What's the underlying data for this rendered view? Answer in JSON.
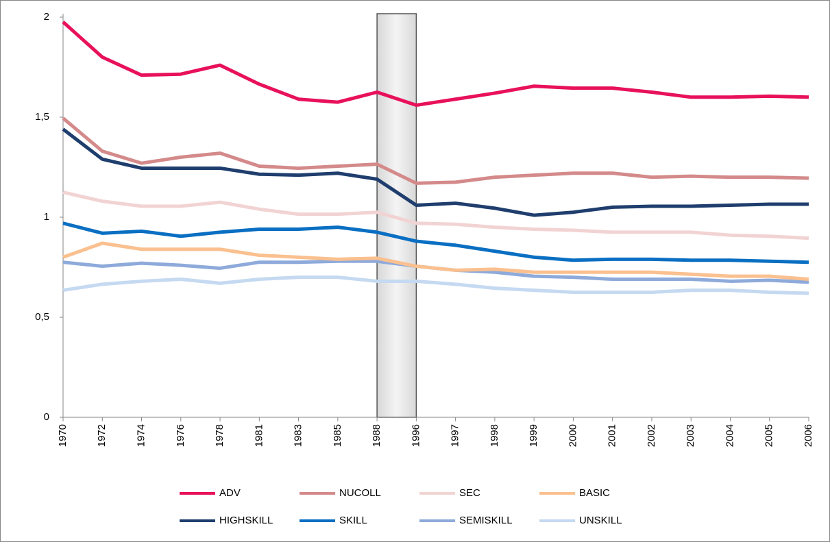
{
  "chart_data": {
    "type": "line",
    "categories": [
      "1970",
      "1972",
      "1974",
      "1976",
      "1978",
      "1981",
      "1983",
      "1985",
      "1988",
      "1996",
      "1997",
      "1998",
      "1999",
      "2000",
      "2001",
      "2002",
      "2003",
      "2004",
      "2005",
      "2006"
    ],
    "ylim": [
      0,
      2
    ],
    "yticks": [
      0,
      {
        "value": 0.5,
        "label": "0,5"
      },
      1,
      {
        "value": 1.5,
        "label": "1,5"
      },
      2
    ],
    "grid": false,
    "series": [
      {
        "name": "ADV",
        "color": "#e8115b",
        "values": [
          1.976,
          1.8,
          1.71,
          1.715,
          1.76,
          1.665,
          1.59,
          1.575,
          1.625,
          1.56,
          1.59,
          1.62,
          1.655,
          1.645,
          1.645,
          1.625,
          1.6,
          1.6,
          1.605,
          1.6
        ]
      },
      {
        "name": "NUCOLL",
        "color": "#d48a8a",
        "values": [
          1.495,
          1.33,
          1.27,
          1.3,
          1.32,
          1.255,
          1.245,
          1.255,
          1.265,
          1.17,
          1.175,
          1.2,
          1.21,
          1.22,
          1.22,
          1.2,
          1.205,
          1.2,
          1.2,
          1.195
        ]
      },
      {
        "name": "SEC",
        "color": "#f2d3d3",
        "values": [
          1.125,
          1.08,
          1.055,
          1.055,
          1.075,
          1.04,
          1.015,
          1.015,
          1.025,
          0.97,
          0.965,
          0.95,
          0.94,
          0.935,
          0.925,
          0.925,
          0.925,
          0.91,
          0.905,
          0.895
        ]
      },
      {
        "name": "BASIC",
        "color": "#fac08f",
        "values": [
          0.8,
          0.87,
          0.84,
          0.84,
          0.84,
          0.81,
          0.8,
          0.79,
          0.795,
          0.755,
          0.735,
          0.74,
          0.725,
          0.725,
          0.725,
          0.725,
          0.715,
          0.705,
          0.705,
          0.69
        ]
      },
      {
        "name": "HIGHSKILL",
        "color": "#1f3e6e",
        "values": [
          1.44,
          1.29,
          1.245,
          1.245,
          1.245,
          1.215,
          1.21,
          1.22,
          1.19,
          1.06,
          1.07,
          1.045,
          1.01,
          1.025,
          1.05,
          1.055,
          1.055,
          1.06,
          1.065,
          1.065
        ]
      },
      {
        "name": "SKILL",
        "color": "#0a6fc2",
        "values": [
          0.97,
          0.92,
          0.93,
          0.905,
          0.925,
          0.94,
          0.94,
          0.95,
          0.925,
          0.88,
          0.86,
          0.83,
          0.8,
          0.785,
          0.79,
          0.79,
          0.785,
          0.785,
          0.78,
          0.775
        ]
      },
      {
        "name": "SEMISKILL",
        "color": "#8eaadb",
        "values": [
          0.775,
          0.755,
          0.77,
          0.76,
          0.745,
          0.775,
          0.775,
          0.78,
          0.78,
          0.755,
          0.735,
          0.725,
          0.705,
          0.7,
          0.69,
          0.69,
          0.69,
          0.68,
          0.685,
          0.675
        ]
      },
      {
        "name": "UNSKILL",
        "color": "#c5d9f1",
        "values": [
          0.635,
          0.665,
          0.68,
          0.69,
          0.67,
          0.69,
          0.7,
          0.7,
          0.68,
          0.68,
          0.665,
          0.645,
          0.635,
          0.625,
          0.625,
          0.625,
          0.635,
          0.635,
          0.625,
          0.62
        ]
      }
    ]
  }
}
